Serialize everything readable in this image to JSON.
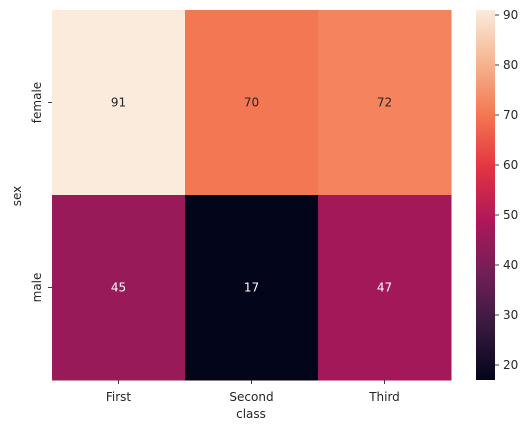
{
  "chart_data": {
    "type": "heatmap",
    "xlabel": "class",
    "ylabel": "sex",
    "x_categories": [
      "First",
      "Second",
      "Third"
    ],
    "y_categories": [
      "female",
      "male"
    ],
    "values": [
      [
        91,
        70,
        72
      ],
      [
        45,
        17,
        47
      ]
    ],
    "colorbar": {
      "min": 17,
      "max": 91,
      "ticks": [
        20,
        30,
        40,
        50,
        60,
        70,
        80,
        90
      ],
      "colormap_stops": [
        "#03051a",
        "#36193e",
        "#701f57",
        "#ad1759",
        "#e13342",
        "#f37651",
        "#f6b48f",
        "#faebdd"
      ]
    },
    "annotation_colors": {
      "on_dark": "#ffffff",
      "on_light": "#262626"
    }
  }
}
